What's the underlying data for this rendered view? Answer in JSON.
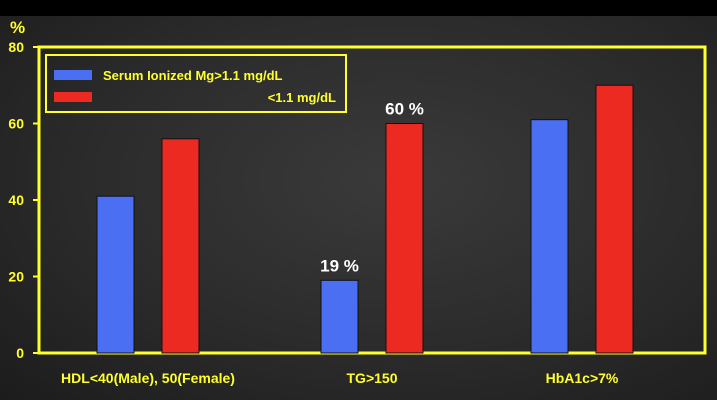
{
  "chart_data": {
    "type": "bar",
    "ylabel": "%",
    "ylim": [
      0,
      80
    ],
    "yticks": [
      0,
      20,
      40,
      60,
      80
    ],
    "categories": [
      "HDL<40(Male), 50(Female)",
      "TG>150",
      "HbA1c>7%"
    ],
    "series": [
      {
        "name": "Serum Ionized Mg>1.1 mg/dL",
        "color": "#4a6ff2",
        "values": [
          41,
          19,
          61
        ]
      },
      {
        "name": "<1.1 mg/dL",
        "color": "#ec2a22",
        "values": [
          56,
          60,
          70
        ]
      }
    ],
    "annotations": [
      {
        "text": "19 %",
        "series": 0,
        "category": 1
      },
      {
        "text": "60 %",
        "series": 1,
        "category": 1
      }
    ],
    "legend": "top-left",
    "grid": false,
    "colors": {
      "axis": "#ffff2e",
      "frame": "#ffff2e",
      "text": "#ffff2e",
      "annotation": "#ffffff"
    }
  }
}
